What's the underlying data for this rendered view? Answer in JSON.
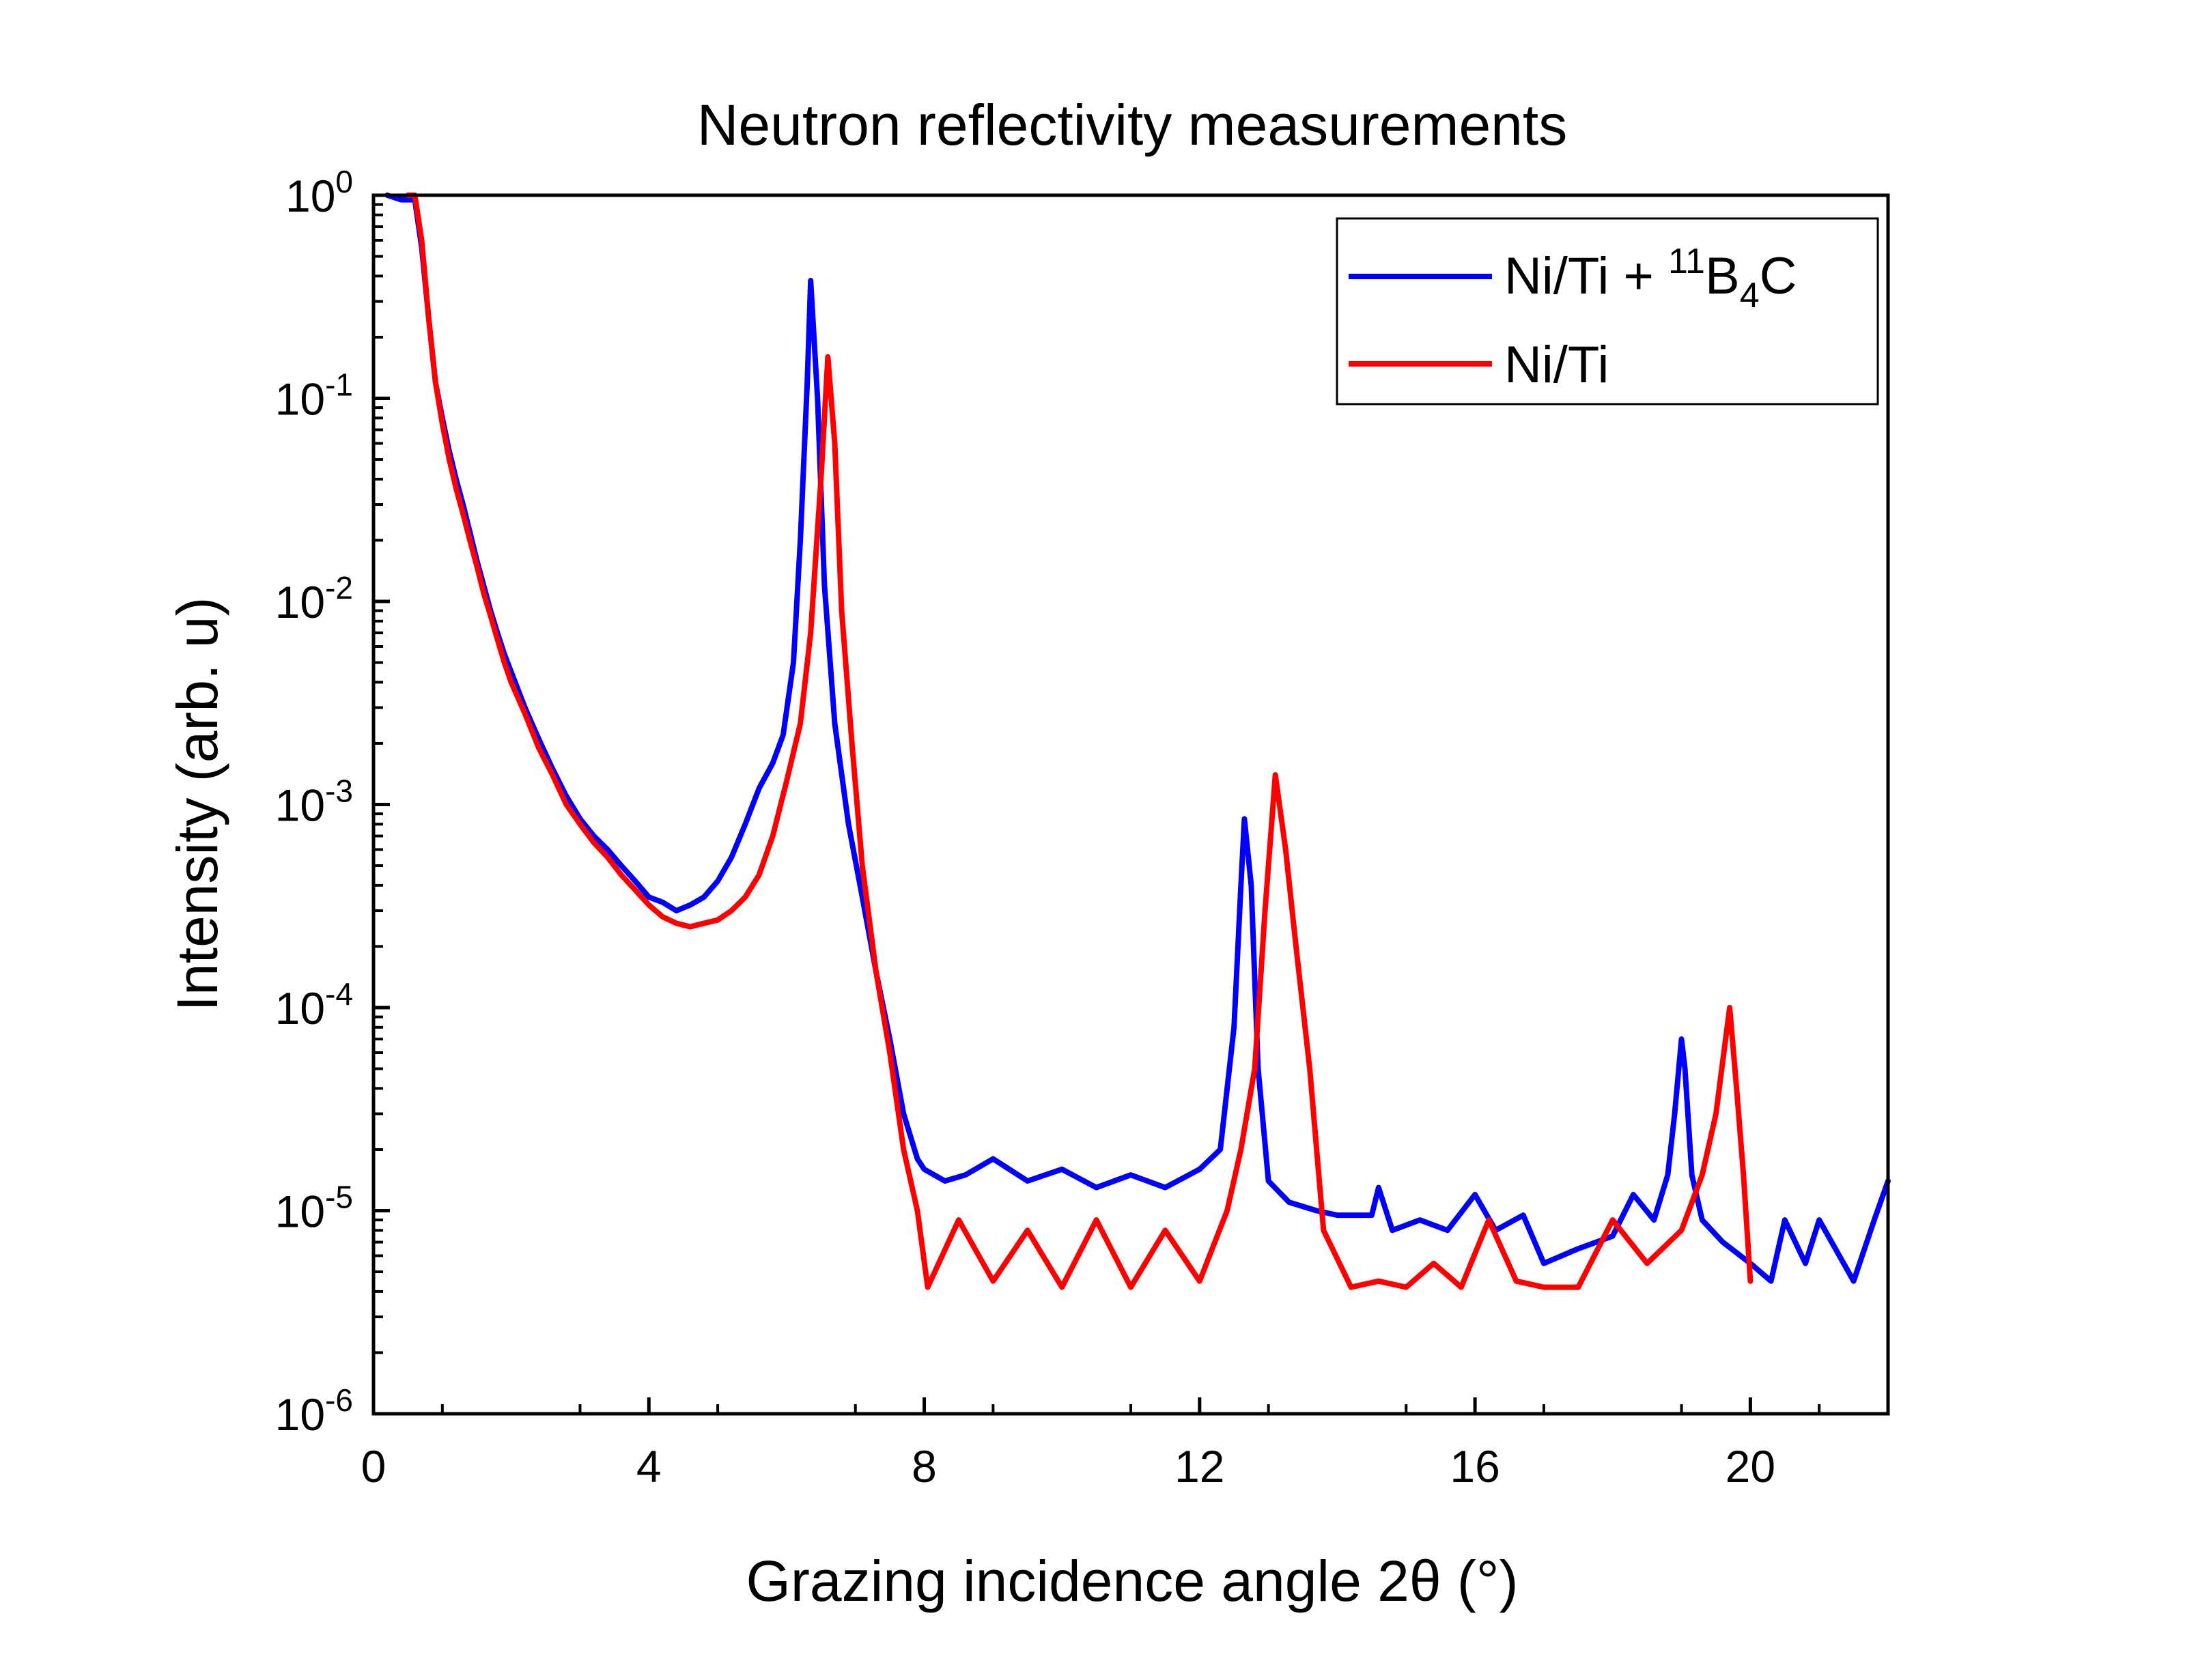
{
  "chart_data": {
    "type": "line",
    "title": "Neutron reflectivity measurements",
    "xlabel": "Grazing incidence angle 2θ (°)",
    "ylabel": "Intensity (arb. u)",
    "xlim": [
      0,
      22
    ],
    "ylim": [
      1e-06,
      1
    ],
    "yscale": "log",
    "grid": false,
    "legend_position": "top-right",
    "x_ticks": [
      {
        "value": 0,
        "label": "0"
      },
      {
        "value": 4,
        "label": "4"
      },
      {
        "value": 8,
        "label": "8"
      },
      {
        "value": 12,
        "label": "12"
      },
      {
        "value": 16,
        "label": "16"
      },
      {
        "value": 20,
        "label": "20"
      }
    ],
    "y_ticks": [
      {
        "value": 1e-06,
        "base": "10",
        "exp": "-6"
      },
      {
        "value": 1e-05,
        "base": "10",
        "exp": "-5"
      },
      {
        "value": 0.0001,
        "base": "10",
        "exp": "-4"
      },
      {
        "value": 0.001,
        "base": "10",
        "exp": "-3"
      },
      {
        "value": 0.01,
        "base": "10",
        "exp": "-2"
      },
      {
        "value": 0.1,
        "base": "10",
        "exp": "-1"
      },
      {
        "value": 1,
        "base": "10",
        "exp": "0"
      }
    ],
    "series": [
      {
        "name": "Ni/Ti + 11B4C",
        "legend_parts": {
          "prefix": "Ni/Ti + ",
          "sup": "11",
          "b": "B",
          "sub": "4",
          "c": "C"
        },
        "color": "#0000ff",
        "x": [
          0.2,
          0.4,
          0.6,
          0.7,
          0.8,
          0.9,
          1.0,
          1.1,
          1.2,
          1.3,
          1.4,
          1.5,
          1.6,
          1.7,
          1.8,
          1.9,
          2.0,
          2.2,
          2.4,
          2.6,
          2.8,
          3.0,
          3.2,
          3.4,
          3.6,
          3.8,
          4.0,
          4.2,
          4.4,
          4.6,
          4.8,
          5.0,
          5.2,
          5.4,
          5.6,
          5.8,
          5.95,
          6.1,
          6.2,
          6.3,
          6.35,
          6.45,
          6.55,
          6.7,
          6.9,
          7.1,
          7.3,
          7.5,
          7.7,
          7.9,
          8.0,
          8.3,
          8.6,
          9.0,
          9.5,
          10.0,
          10.5,
          11.0,
          11.5,
          12.0,
          12.3,
          12.5,
          12.6,
          12.65,
          12.75,
          12.85,
          13.0,
          13.3,
          13.7,
          14.0,
          14.5,
          14.6,
          14.8,
          15.2,
          15.6,
          16.0,
          16.3,
          16.7,
          17.0,
          17.5,
          18.0,
          18.3,
          18.6,
          18.8,
          18.9,
          19.0,
          19.05,
          19.15,
          19.3,
          19.6,
          20.0,
          20.3,
          20.5,
          20.8,
          21.0,
          21.5,
          21.8,
          22.0
        ],
        "y": [
          1.0,
          0.95,
          0.95,
          0.55,
          0.25,
          0.12,
          0.08,
          0.055,
          0.04,
          0.03,
          0.022,
          0.016,
          0.012,
          0.009,
          0.007,
          0.0055,
          0.0045,
          0.003,
          0.0021,
          0.0015,
          0.0011,
          0.00085,
          0.0007,
          0.0006,
          0.0005,
          0.00042,
          0.00035,
          0.00033,
          0.0003,
          0.00032,
          0.00035,
          0.00042,
          0.00055,
          0.0008,
          0.0012,
          0.0016,
          0.0022,
          0.005,
          0.02,
          0.12,
          0.38,
          0.1,
          0.012,
          0.0025,
          0.0008,
          0.00035,
          0.00015,
          7e-05,
          3e-05,
          1.8e-05,
          1.6e-05,
          1.4e-05,
          1.5e-05,
          1.8e-05,
          1.4e-05,
          1.6e-05,
          1.3e-05,
          1.5e-05,
          1.3e-05,
          1.6e-05,
          2e-05,
          8e-05,
          0.0004,
          0.00085,
          0.0004,
          5e-05,
          1.4e-05,
          1.1e-05,
          1e-05,
          9.5e-06,
          9.5e-06,
          1.3e-05,
          8e-06,
          9e-06,
          8e-06,
          1.2e-05,
          8e-06,
          9.5e-06,
          5.5e-06,
          6.5e-06,
          7.5e-06,
          1.2e-05,
          9e-06,
          1.5e-05,
          3e-05,
          7e-05,
          5e-05,
          1.5e-05,
          9e-06,
          7e-06,
          5.5e-06,
          4.5e-06,
          9e-06,
          5.5e-06,
          9e-06,
          4.5e-06,
          9e-06,
          1.4e-05
        ]
      },
      {
        "name": "Ni/Ti",
        "color": "#ff0000",
        "x": [
          0.5,
          0.6,
          0.7,
          0.8,
          0.9,
          1.0,
          1.1,
          1.2,
          1.3,
          1.4,
          1.5,
          1.6,
          1.7,
          1.8,
          1.9,
          2.0,
          2.2,
          2.4,
          2.6,
          2.8,
          3.0,
          3.2,
          3.4,
          3.6,
          3.8,
          4.0,
          4.2,
          4.4,
          4.6,
          4.8,
          5.0,
          5.2,
          5.4,
          5.6,
          5.8,
          6.0,
          6.2,
          6.35,
          6.5,
          6.6,
          6.7,
          6.8,
          6.95,
          7.1,
          7.3,
          7.5,
          7.7,
          7.9,
          8.05,
          8.5,
          9.0,
          9.5,
          10.0,
          10.5,
          11.0,
          11.5,
          12.0,
          12.4,
          12.6,
          12.8,
          12.95,
          13.1,
          13.25,
          13.4,
          13.6,
          13.8,
          14.2,
          14.6,
          15.0,
          15.4,
          15.8,
          16.2,
          16.6,
          17.0,
          17.5,
          18.0,
          18.5,
          19.0,
          19.3,
          19.5,
          19.7,
          19.8,
          19.9,
          20.0
        ],
        "y": [
          1.0,
          1.0,
          0.6,
          0.25,
          0.12,
          0.075,
          0.05,
          0.036,
          0.027,
          0.02,
          0.015,
          0.011,
          0.0085,
          0.0065,
          0.005,
          0.004,
          0.0028,
          0.0019,
          0.0014,
          0.001,
          0.0008,
          0.00065,
          0.00055,
          0.00045,
          0.00038,
          0.00032,
          0.00028,
          0.00026,
          0.00025,
          0.00026,
          0.00027,
          0.0003,
          0.00035,
          0.00045,
          0.0007,
          0.0013,
          0.0025,
          0.007,
          0.04,
          0.16,
          0.06,
          0.009,
          0.002,
          0.0005,
          0.00015,
          6e-05,
          2e-05,
          1e-05,
          4.2e-06,
          9e-06,
          4.5e-06,
          8e-06,
          4.2e-06,
          9e-06,
          4.2e-06,
          8e-06,
          4.5e-06,
          1e-05,
          2e-05,
          5e-05,
          0.0003,
          0.0014,
          0.0006,
          0.0002,
          5e-05,
          8e-06,
          4.2e-06,
          4.5e-06,
          4.2e-06,
          5.5e-06,
          4.2e-06,
          9e-06,
          4.5e-06,
          4.2e-06,
          4.2e-06,
          9e-06,
          5.5e-06,
          8e-06,
          1.5e-05,
          3e-05,
          0.0001,
          4e-05,
          1.5e-05,
          4.5e-06
        ]
      }
    ]
  }
}
